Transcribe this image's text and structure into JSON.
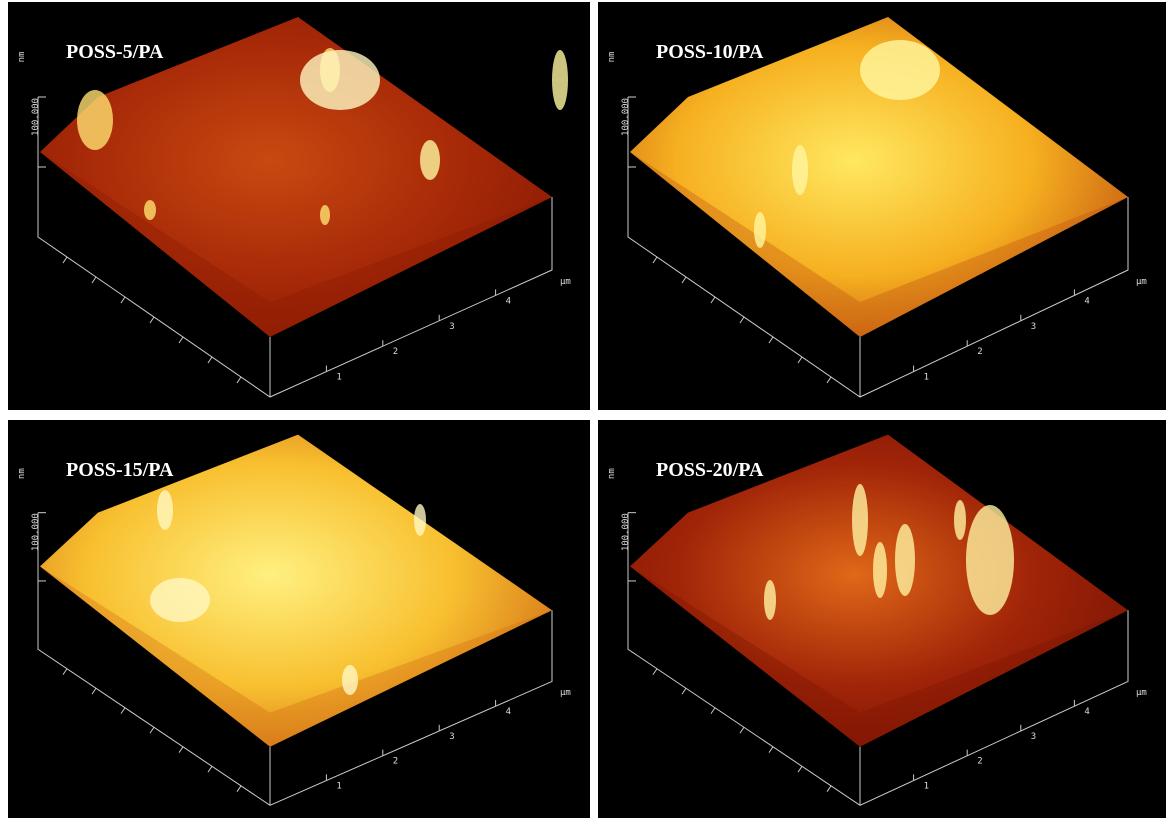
{
  "panels": [
    {
      "title": "POSS-5/PA",
      "z_unit": "nm",
      "z_tick": "100.000",
      "x_ticks": [
        "1",
        "2",
        "3",
        "4"
      ],
      "x_unit": "μm"
    },
    {
      "title": "POSS-10/PA",
      "z_unit": "nm",
      "z_tick": "100.000",
      "x_ticks": [
        "1",
        "2",
        "3",
        "4"
      ],
      "x_unit": "μm"
    },
    {
      "title": "POSS-15/PA",
      "z_unit": "nm",
      "z_tick": "100.000",
      "x_ticks": [
        "1",
        "2",
        "3",
        "4"
      ],
      "x_unit": "μm"
    },
    {
      "title": "POSS-20/PA",
      "z_unit": "nm",
      "z_tick": "100.000",
      "x_ticks": [
        "1",
        "2",
        "3",
        "4"
      ],
      "x_unit": "μm"
    }
  ]
}
